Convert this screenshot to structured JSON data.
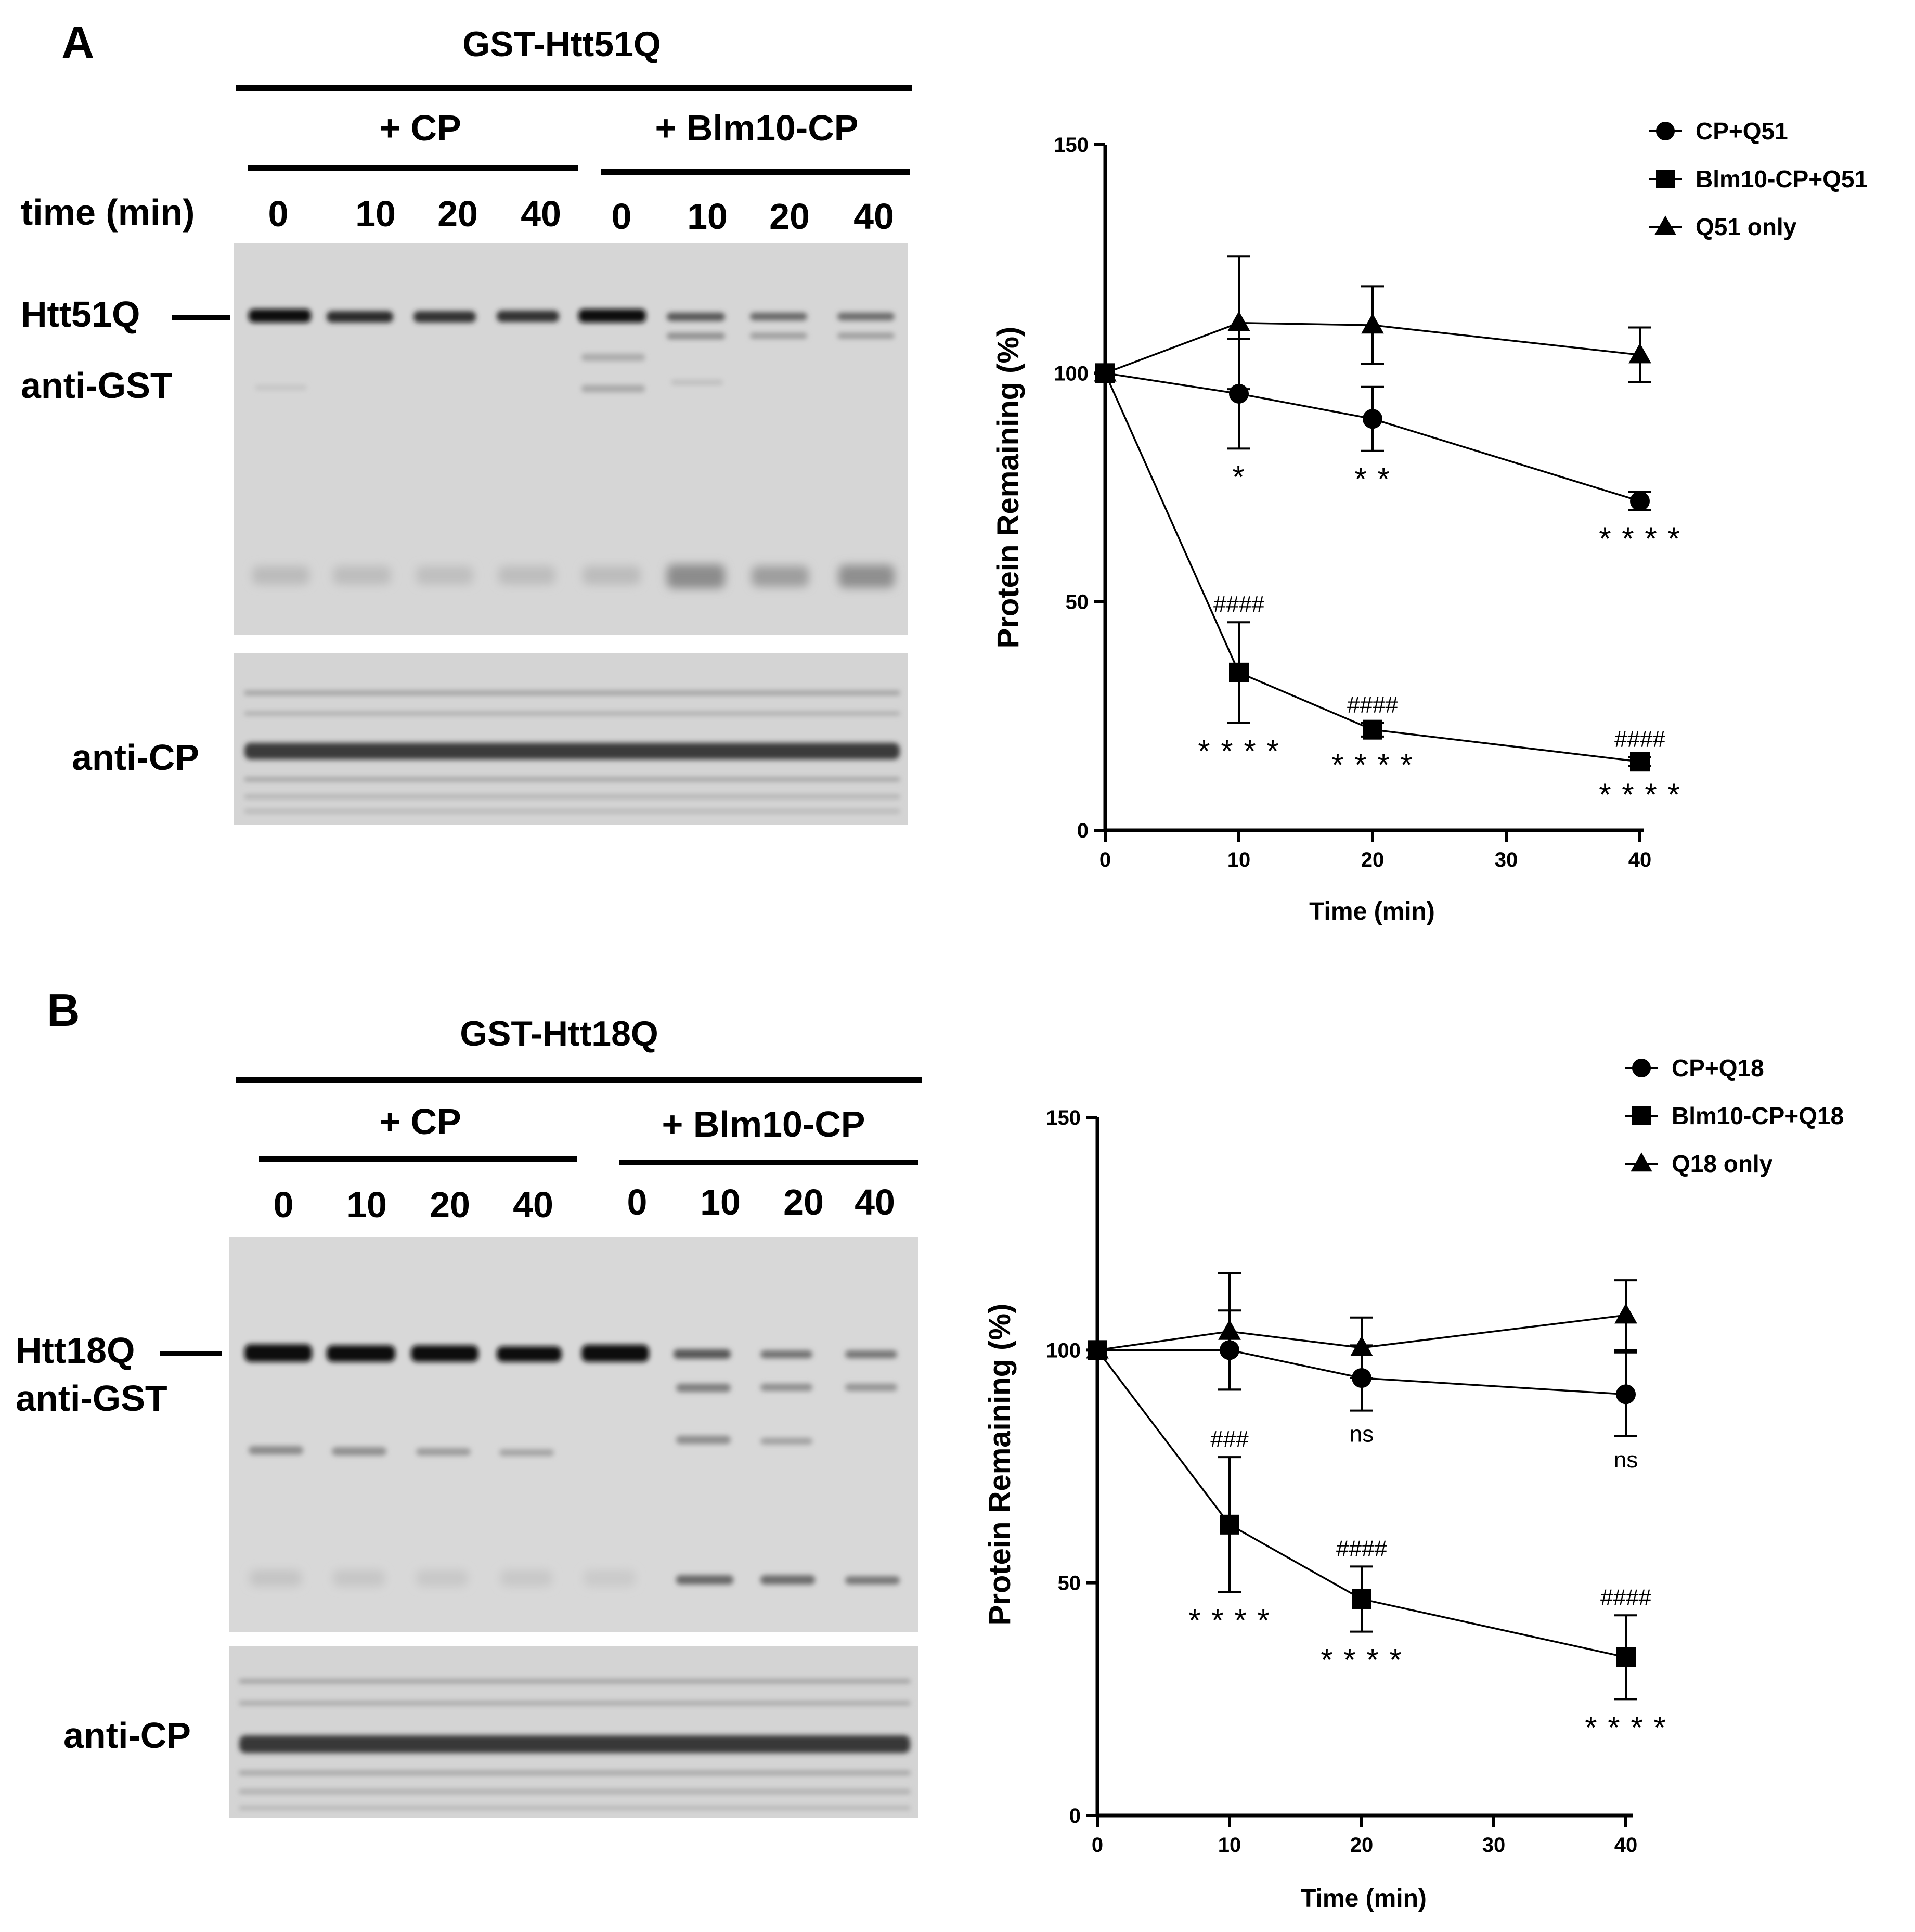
{
  "panel_a": {
    "panel_letter": "A",
    "construct": "GST-Htt51Q",
    "group_cp": "+ CP",
    "group_blm": "+ Blm10-CP",
    "time_label": "time (min)",
    "lanes": [
      "0",
      "10",
      "20",
      "40",
      "0",
      "10",
      "20",
      "40"
    ],
    "band_label_1": "Htt51Q",
    "band_label_2": "anti-GST",
    "cp_blot_label": "anti-CP"
  },
  "panel_b": {
    "panel_letter": "B",
    "construct": "GST-Htt18Q",
    "group_cp": "+ CP",
    "group_blm": "+ Blm10-CP",
    "lanes": [
      "0",
      "10",
      "20",
      "40",
      "0",
      "10",
      "20",
      "40"
    ],
    "band_label_1": "Htt18Q",
    "band_label_2": "anti-GST",
    "cp_blot_label": "anti-CP"
  },
  "chart_data": [
    {
      "type": "line",
      "xlabel": "Time (min)",
      "ylabel": "Protein Remaining (%)",
      "xlim": [
        0,
        40
      ],
      "ylim": [
        0,
        150
      ],
      "xticks": [
        0,
        10,
        20,
        30,
        40
      ],
      "yticks": [
        0,
        50,
        100,
        150
      ],
      "legend_position": "top-right",
      "series": [
        {
          "name": "CP+Q51",
          "marker": "circle",
          "x": [
            0,
            10,
            20,
            40
          ],
          "y": [
            100,
            95.5,
            90,
            72
          ],
          "err": [
            0,
            12,
            7,
            2
          ],
          "sig": [
            "",
            "*",
            "* *",
            "* * * *"
          ]
        },
        {
          "name": "Blm10-CP+Q51",
          "marker": "square",
          "x": [
            0,
            10,
            20,
            40
          ],
          "y": [
            100,
            34.5,
            22,
            15
          ],
          "err": [
            0,
            11,
            1.5,
            1
          ],
          "sig": [
            "",
            "* * * *",
            "* * * *",
            "* * * *"
          ],
          "hash": [
            "",
            "####",
            "####",
            "####"
          ]
        },
        {
          "name": "Q51 only",
          "marker": "triangle",
          "x": [
            0,
            10,
            20,
            40
          ],
          "y": [
            100,
            111,
            110.5,
            104
          ],
          "err": [
            0,
            14.5,
            8.5,
            6
          ],
          "sig": [
            "",
            "",
            "",
            ""
          ]
        }
      ]
    },
    {
      "type": "line",
      "xlabel": "Time (min)",
      "ylabel": "Protein Remaining (%)",
      "xlim": [
        0,
        40
      ],
      "ylim": [
        0,
        150
      ],
      "xticks": [
        0,
        10,
        20,
        30,
        40
      ],
      "yticks": [
        0,
        50,
        100,
        150
      ],
      "legend_position": "top-right",
      "series": [
        {
          "name": "CP+Q18",
          "marker": "circle",
          "x": [
            0,
            10,
            20,
            40
          ],
          "y": [
            100,
            100,
            94,
            90.5
          ],
          "err": [
            0,
            8.5,
            7,
            9
          ],
          "sig": [
            "",
            "",
            "ns",
            "ns"
          ]
        },
        {
          "name": "Blm10-CP+Q18",
          "marker": "square",
          "x": [
            0,
            10,
            20,
            40
          ],
          "y": [
            100,
            62.5,
            46.5,
            34
          ],
          "err": [
            0,
            14.5,
            7,
            9
          ],
          "sig": [
            "",
            "* * * *",
            "* * * *",
            "* * * *"
          ],
          "hash": [
            "",
            "###",
            "####",
            "####"
          ]
        },
        {
          "name": "Q18 only",
          "marker": "triangle",
          "x": [
            0,
            10,
            20,
            40
          ],
          "y": [
            100,
            104,
            100.5,
            107.5
          ],
          "err": [
            0,
            12.5,
            6.5,
            7.5
          ],
          "sig": [
            "",
            "",
            "",
            ""
          ]
        }
      ]
    }
  ]
}
